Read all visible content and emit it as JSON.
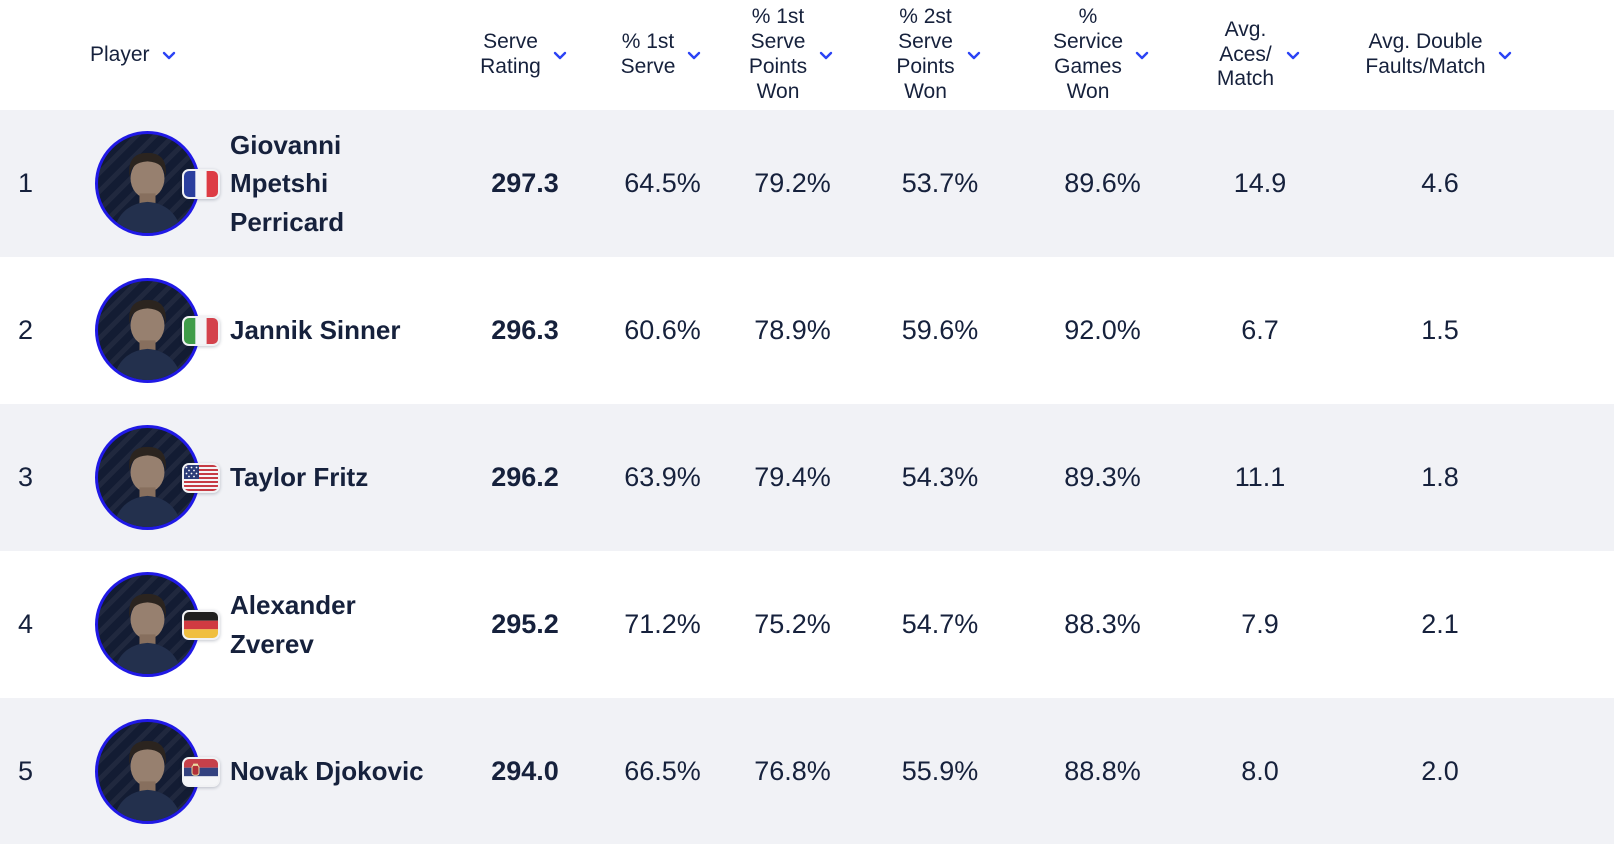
{
  "table": {
    "sort_icon": "chevron-down-icon",
    "columns": [
      {
        "id": "player",
        "label": "Player"
      },
      {
        "id": "serve_rating",
        "label": "Serve\nRating"
      },
      {
        "id": "pct_1st_serve",
        "label": "% 1st\nServe"
      },
      {
        "id": "pct_1st_serve_points_won",
        "label": "% 1st\nServe\nPoints\nWon"
      },
      {
        "id": "pct_2st_serve_points_won",
        "label": "% 2st\nServe\nPoints\nWon"
      },
      {
        "id": "pct_service_games_won",
        "label": "%\nService\nGames\nWon"
      },
      {
        "id": "avg_aces_match",
        "label": "Avg.\nAces/\nMatch"
      },
      {
        "id": "avg_double_faults_match",
        "label": "Avg. Double\nFaults/Match"
      }
    ],
    "rows": [
      {
        "rank": "1",
        "player": "Giovanni Mpetshi Perricard",
        "flag": "france",
        "serve_rating": "297.3",
        "pct_1st_serve": "64.5%",
        "pct_1st_serve_points_won": "79.2%",
        "pct_2st_serve_points_won": "53.7%",
        "pct_service_games_won": "89.6%",
        "avg_aces_match": "14.9",
        "avg_double_faults_match": "4.6"
      },
      {
        "rank": "2",
        "player": "Jannik Sinner",
        "flag": "italy",
        "serve_rating": "296.3",
        "pct_1st_serve": "60.6%",
        "pct_1st_serve_points_won": "78.9%",
        "pct_2st_serve_points_won": "59.6%",
        "pct_service_games_won": "92.0%",
        "avg_aces_match": "6.7",
        "avg_double_faults_match": "1.5"
      },
      {
        "rank": "3",
        "player": "Taylor Fritz",
        "flag": "usa",
        "serve_rating": "296.2",
        "pct_1st_serve": "63.9%",
        "pct_1st_serve_points_won": "79.4%",
        "pct_2st_serve_points_won": "54.3%",
        "pct_service_games_won": "89.3%",
        "avg_aces_match": "11.1",
        "avg_double_faults_match": "1.8"
      },
      {
        "rank": "4",
        "player": "Alexander Zverev",
        "flag": "germany",
        "serve_rating": "295.2",
        "pct_1st_serve": "71.2%",
        "pct_1st_serve_points_won": "75.2%",
        "pct_2st_serve_points_won": "54.7%",
        "pct_service_games_won": "88.3%",
        "avg_aces_match": "7.9",
        "avg_double_faults_match": "2.1"
      },
      {
        "rank": "5",
        "player": "Novak Djokovic",
        "flag": "serbia",
        "serve_rating": "294.0",
        "pct_1st_serve": "66.5%",
        "pct_1st_serve_points_won": "76.8%",
        "pct_2st_serve_points_won": "55.9%",
        "pct_service_games_won": "88.8%",
        "avg_aces_match": "8.0",
        "avg_double_faults_match": "2.0"
      }
    ]
  },
  "colors": {
    "accent_blue": "#2b43f5",
    "text": "#16213c",
    "row_alt_bg": "#f1f2f6",
    "avatar_ring": "#2019e6",
    "avatar_bg": "#131c33"
  }
}
